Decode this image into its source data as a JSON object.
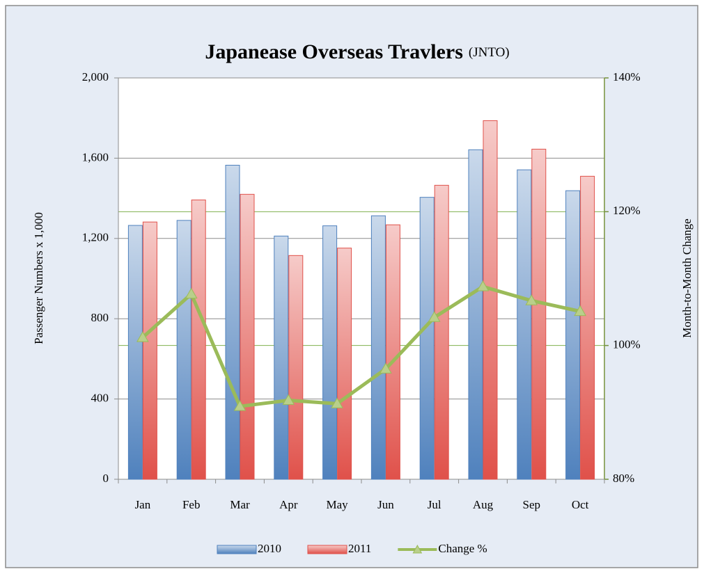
{
  "chart_data": {
    "type": "bar",
    "title": "Japanease Overseas Travlers",
    "subtitle": "(JNTO)",
    "ylabel": "Passenger Numbers  x 1,000",
    "y2label": "Month-to-Month Change",
    "categories": [
      "Jan",
      "Feb",
      "Mar",
      "Apr",
      "May",
      "Jun",
      "Jul",
      "Aug",
      "Sep",
      "Oct"
    ],
    "series": [
      {
        "name": "2010",
        "type": "bar",
        "color": "#4f81bd",
        "values": [
          1265,
          1290,
          1565,
          1212,
          1263,
          1313,
          1405,
          1642,
          1542,
          1438
        ]
      },
      {
        "name": "2011",
        "type": "bar",
        "color": "#e0514a",
        "values": [
          1282,
          1392,
          1420,
          1115,
          1152,
          1268,
          1465,
          1787,
          1645,
          1510
        ]
      },
      {
        "name": "Change %",
        "type": "line",
        "axis": "y2",
        "color": "#9bbb59",
        "values": [
          101.2,
          107.7,
          90.9,
          91.8,
          91.3,
          96.5,
          104.2,
          108.8,
          106.7,
          105.1
        ]
      }
    ],
    "ylim": [
      0,
      2000
    ],
    "yticks": [
      0,
      400,
      800,
      {
        "value": 1200,
        "label": "1,200"
      },
      {
        "value": 1600,
        "label": "1,600"
      },
      {
        "value": 2000,
        "label": "2,000"
      }
    ],
    "y2lim": [
      80,
      140
    ],
    "y2ticks": [
      {
        "value": 80,
        "label": "80%"
      },
      {
        "value": 100,
        "label": "100%"
      },
      {
        "value": 120,
        "label": "120%"
      },
      {
        "value": 140,
        "label": "140%"
      }
    ],
    "grid": true,
    "y2color": "#76923c",
    "legend": "bottom"
  }
}
